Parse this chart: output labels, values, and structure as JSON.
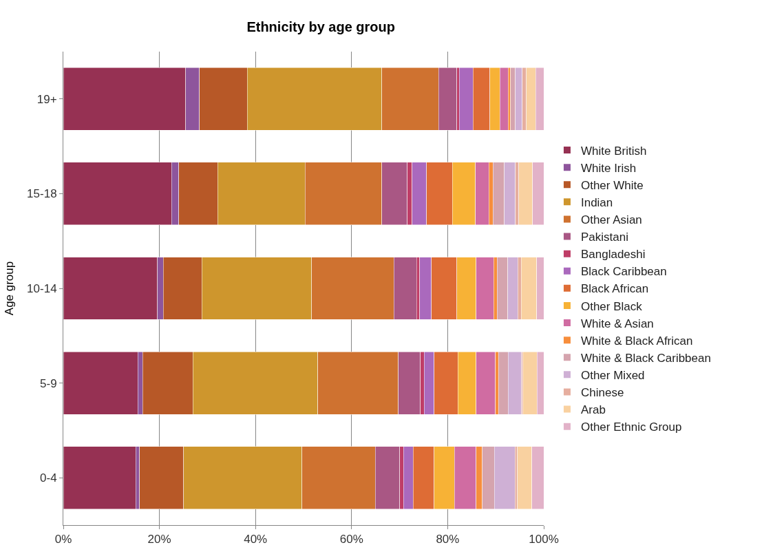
{
  "chart_data": {
    "type": "bar",
    "orientation": "horizontal",
    "stacked": true,
    "title": "Ethnicity by age group",
    "ylabel": "Age group",
    "categories": [
      "19+",
      "15-18",
      "10-14",
      "5-9",
      "0-4"
    ],
    "xlim": [
      0,
      100
    ],
    "xticks": [
      {
        "value": 0,
        "label": "0%"
      },
      {
        "value": 20,
        "label": "20%"
      },
      {
        "value": 40,
        "label": "40%"
      },
      {
        "value": 60,
        "label": "60%"
      },
      {
        "value": 80,
        "label": "80%"
      },
      {
        "value": 100,
        "label": "100%"
      }
    ],
    "grid": "x",
    "legend": "right",
    "series": [
      {
        "name": "White British",
        "color": "#963153",
        "values": [
          25.5,
          22.5,
          19.6,
          15.5,
          15.1
        ]
      },
      {
        "name": "White Irish",
        "color": "#8e559c",
        "values": [
          2.8,
          1.5,
          1.2,
          1.0,
          0.8
        ]
      },
      {
        "name": "Other White",
        "color": "#b75827",
        "values": [
          10.0,
          8.1,
          8.0,
          10.5,
          9.1
        ]
      },
      {
        "name": "Indian",
        "color": "#ce962d",
        "values": [
          28.0,
          18.2,
          22.9,
          26.0,
          24.7
        ]
      },
      {
        "name": "Other Asian",
        "color": "#cf7230",
        "values": [
          11.8,
          16.0,
          17.1,
          16.7,
          15.2
        ]
      },
      {
        "name": "Pakistani",
        "color": "#a95784",
        "values": [
          3.8,
          5.3,
          4.7,
          4.6,
          5.1
        ]
      },
      {
        "name": "Bangladeshi",
        "color": "#bf3d67",
        "values": [
          0.5,
          1.0,
          0.7,
          0.8,
          0.8
        ]
      },
      {
        "name": "Black Caribbean",
        "color": "#aa69bd",
        "values": [
          2.9,
          3.0,
          2.4,
          2.1,
          2.0
        ]
      },
      {
        "name": "Black African",
        "color": "#de6c35",
        "values": [
          3.5,
          5.4,
          5.3,
          4.9,
          4.4
        ]
      },
      {
        "name": "Other Black",
        "color": "#f7b236",
        "values": [
          2.1,
          4.8,
          4.0,
          3.8,
          4.2
        ]
      },
      {
        "name": "White & Asian",
        "color": "#d06ca2",
        "values": [
          1.7,
          2.8,
          3.7,
          4.0,
          4.5
        ]
      },
      {
        "name": "White & Black African",
        "color": "#f78e3c",
        "values": [
          0.5,
          0.8,
          0.7,
          0.7,
          1.3
        ]
      },
      {
        "name": "White & Black Caribbean",
        "color": "#d5a4ae",
        "values": [
          1.0,
          2.4,
          2.2,
          2.0,
          2.5
        ]
      },
      {
        "name": "Other Mixed",
        "color": "#cfb0d5",
        "values": [
          1.4,
          2.3,
          2.1,
          2.8,
          4.3
        ]
      },
      {
        "name": "Chinese",
        "color": "#e6ae9f",
        "values": [
          0.9,
          0.7,
          0.7,
          0.3,
          0.5
        ]
      },
      {
        "name": "Arab",
        "color": "#f9d1a0",
        "values": [
          1.9,
          2.9,
          3.2,
          2.9,
          3.0
        ]
      },
      {
        "name": "Other Ethnic Group",
        "color": "#e2b2c8",
        "values": [
          1.7,
          2.3,
          1.5,
          1.4,
          2.5
        ]
      }
    ]
  }
}
